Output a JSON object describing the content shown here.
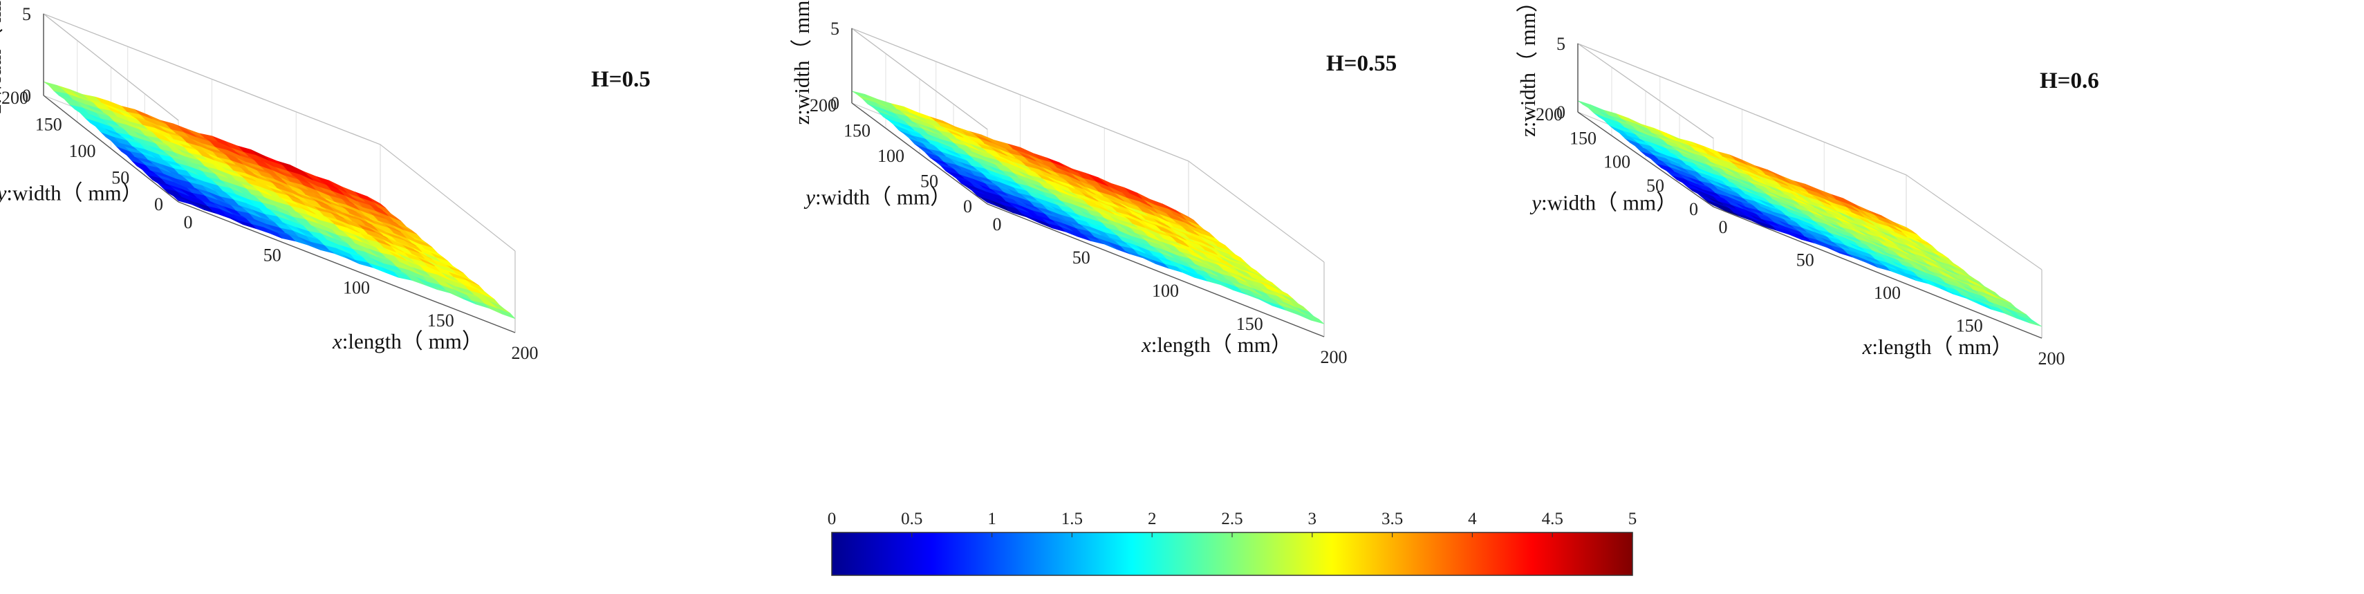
{
  "chart_data": {
    "type": "surface3d",
    "panels": [
      {
        "title": "H=0.5",
        "z_grid": [
          [
            0.2,
            0.6,
            1.2,
            1.9,
            2.6
          ],
          [
            0.7,
            1.4,
            2.3,
            3.0,
            3.5
          ],
          [
            1.5,
            2.4,
            3.2,
            3.6,
            4.2
          ],
          [
            2.2,
            3.0,
            3.6,
            3.5,
            4.6
          ],
          [
            2.6,
            3.2,
            3.0,
            3.6,
            4.0
          ]
        ]
      },
      {
        "title": "H=0.55",
        "z_grid": [
          [
            0.1,
            0.5,
            1.1,
            1.8,
            2.5
          ],
          [
            0.6,
            1.3,
            2.2,
            2.9,
            3.3
          ],
          [
            1.4,
            2.3,
            3.0,
            3.4,
            4.0
          ],
          [
            2.1,
            2.8,
            3.3,
            3.2,
            4.4
          ],
          [
            2.4,
            3.0,
            2.8,
            3.2,
            3.8
          ]
        ]
      },
      {
        "title": "H=0.6",
        "z_grid": [
          [
            0.1,
            0.4,
            1.0,
            1.7,
            2.4
          ],
          [
            0.5,
            1.2,
            2.0,
            2.6,
            3.0
          ],
          [
            1.3,
            2.1,
            2.7,
            3.0,
            3.6
          ],
          [
            1.9,
            2.6,
            2.9,
            2.9,
            4.0
          ],
          [
            2.2,
            2.8,
            2.6,
            2.9,
            3.5
          ]
        ]
      }
    ],
    "x_axis": {
      "label_italic": "x",
      "label_rest": ":length（ mm）",
      "ticks": [
        "0",
        "50",
        "100",
        "150",
        "200"
      ],
      "range": [
        0,
        200
      ]
    },
    "y_axis": {
      "label_italic": "y",
      "label_rest": ":width（ mm）",
      "ticks": [
        "0",
        "50",
        "100",
        "150",
        "200"
      ],
      "range": [
        0,
        200
      ]
    },
    "z_axis": {
      "label": "z:width（ mm）",
      "ticks": [
        "0",
        "5"
      ],
      "range": [
        0,
        5
      ]
    },
    "colorbar": {
      "colormap": "jet",
      "range": [
        0,
        5
      ],
      "ticks": [
        "0",
        "0.5",
        "1",
        "1.5",
        "2",
        "2.5",
        "3",
        "3.5",
        "4",
        "4.5",
        "5"
      ]
    }
  }
}
